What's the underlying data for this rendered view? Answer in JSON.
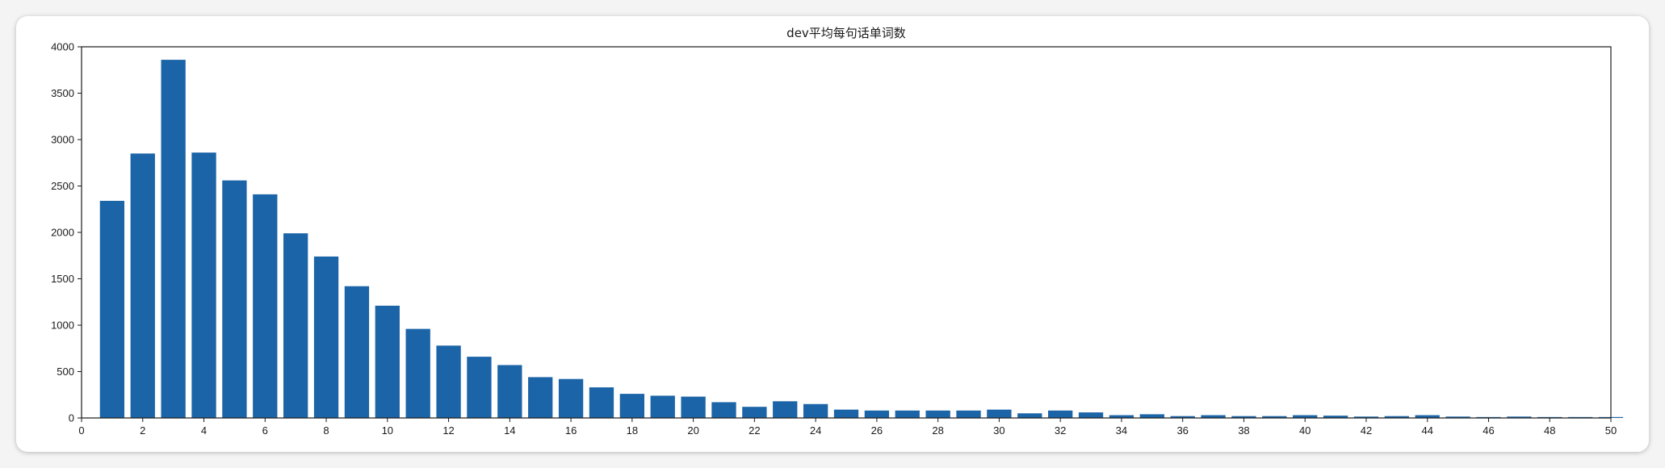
{
  "chart_data": {
    "type": "bar",
    "title": "dev平均每句话单词数",
    "xlabel": "",
    "ylabel": "",
    "xlim": [
      0,
      50
    ],
    "ylim": [
      0,
      4000
    ],
    "x_ticks": [
      0,
      2,
      4,
      6,
      8,
      10,
      12,
      14,
      16,
      18,
      20,
      22,
      24,
      26,
      28,
      30,
      32,
      34,
      36,
      38,
      40,
      42,
      44,
      46,
      48,
      50
    ],
    "y_ticks": [
      0,
      500,
      1000,
      1500,
      2000,
      2500,
      3000,
      3500,
      4000
    ],
    "grid": false,
    "legend": "none",
    "bar_color": "#1b64a7",
    "x": [
      1,
      2,
      3,
      4,
      5,
      6,
      7,
      8,
      9,
      10,
      11,
      12,
      13,
      14,
      15,
      16,
      17,
      18,
      19,
      20,
      21,
      22,
      23,
      24,
      25,
      26,
      27,
      28,
      29,
      30,
      31,
      32,
      33,
      34,
      35,
      36,
      37,
      38,
      39,
      40,
      41,
      42,
      43,
      44,
      45,
      46,
      47,
      48,
      49,
      50
    ],
    "values": [
      2340,
      2850,
      3860,
      2860,
      2560,
      2410,
      1990,
      1740,
      1420,
      1210,
      960,
      780,
      660,
      570,
      440,
      420,
      330,
      260,
      240,
      230,
      170,
      120,
      180,
      150,
      90,
      80,
      80,
      80,
      80,
      90,
      50,
      80,
      60,
      30,
      40,
      20,
      30,
      20,
      20,
      30,
      25,
      15,
      20,
      30,
      15,
      10,
      15,
      10,
      10,
      10
    ]
  }
}
